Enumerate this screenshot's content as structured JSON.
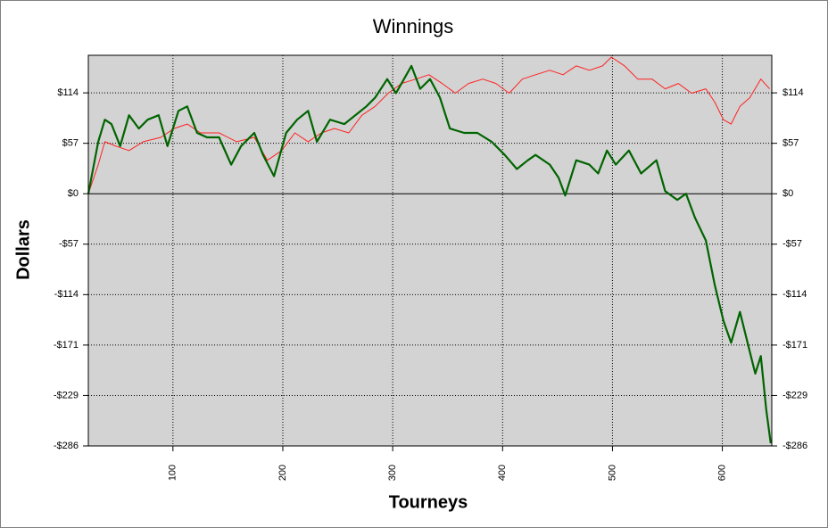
{
  "chart_data": {
    "type": "line",
    "title": "Winnings",
    "x_label": "Tourneys",
    "y_label": "Dollars",
    "xlim": [
      23,
      645
    ],
    "xticks": [
      100,
      200,
      300,
      400,
      500,
      600
    ],
    "ylim": [
      -286,
      157
    ],
    "yticks": [
      {
        "value": 114.4,
        "label": "$114"
      },
      {
        "value": 57.2,
        "label": "$57"
      },
      {
        "value": 0,
        "label": "$0"
      },
      {
        "value": -57.2,
        "label": "-$57"
      },
      {
        "value": -114.4,
        "label": "-$114"
      },
      {
        "value": -171.6,
        "label": "-$171"
      },
      {
        "value": -228.8,
        "label": "-$229"
      },
      {
        "value": -286,
        "label": "-$286"
      }
    ],
    "grid": true,
    "series": [
      {
        "color": "#ff2020",
        "x": [
          23,
          32,
          38,
          48,
          60,
          73,
          89,
          101,
          113,
          125,
          142,
          158,
          174,
          186,
          199,
          211,
          223,
          235,
          247,
          260,
          272,
          284,
          296,
          308,
          321,
          333,
          345,
          357,
          369,
          382,
          394,
          406,
          418,
          430,
          443,
          455,
          467,
          479,
          491,
          499,
          511,
          523,
          536,
          548,
          560,
          572,
          585,
          593,
          601,
          608,
          616,
          625,
          635,
          643
        ],
        "values": [
          0,
          33,
          59,
          54,
          49,
          59,
          64,
          74,
          79,
          69,
          69,
          59,
          64,
          38,
          49,
          69,
          59,
          69,
          74,
          69,
          89,
          99,
          114,
          125,
          130,
          135,
          125,
          114,
          125,
          130,
          125,
          114,
          130,
          135,
          140,
          135,
          145,
          140,
          145,
          155,
          145,
          130,
          130,
          119,
          125,
          114,
          119,
          104,
          84,
          79,
          99,
          109,
          130,
          119
        ]
      },
      {
        "color": "#006400",
        "x": [
          23,
          32,
          38,
          44,
          52,
          60,
          69,
          77,
          87,
          95,
          105,
          113,
          122,
          131,
          142,
          153,
          162,
          174,
          182,
          192,
          203,
          213,
          223,
          231,
          243,
          256,
          266,
          276,
          284,
          295,
          303,
          308,
          317,
          325,
          334,
          343,
          352,
          365,
          377,
          390,
          402,
          413,
          423,
          430,
          443,
          451,
          457,
          467,
          479,
          487,
          495,
          503,
          515,
          526,
          540,
          548,
          559,
          567,
          575,
          585,
          593,
          601,
          608,
          616,
          624,
          630,
          635,
          640,
          644
        ],
        "values": [
          0,
          59,
          84,
          79,
          54,
          89,
          74,
          84,
          89,
          54,
          94,
          99,
          69,
          64,
          64,
          33,
          54,
          69,
          44,
          20,
          69,
          84,
          94,
          59,
          84,
          79,
          89,
          99,
          109,
          130,
          114,
          125,
          145,
          119,
          130,
          109,
          74,
          69,
          69,
          59,
          44,
          28,
          38,
          44,
          33,
          18,
          -2,
          38,
          33,
          23,
          49,
          33,
          49,
          23,
          38,
          3,
          -7,
          0,
          -27,
          -53,
          -103,
          -144,
          -169,
          -134,
          -174,
          -204,
          -184,
          -245,
          -283
        ]
      }
    ]
  }
}
